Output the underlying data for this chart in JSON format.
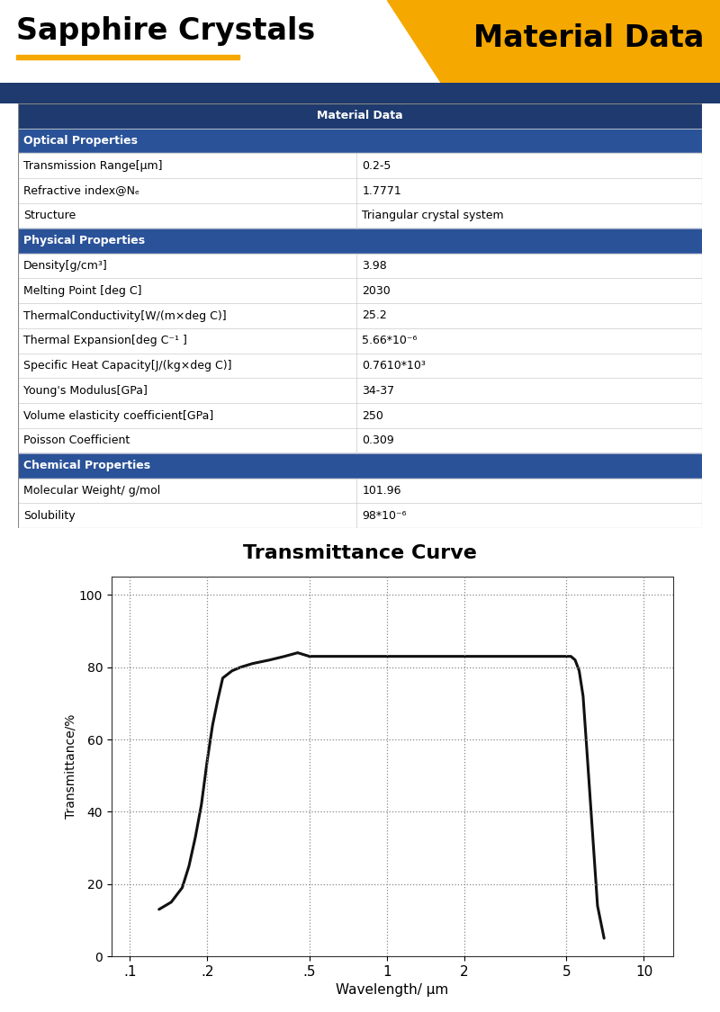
{
  "title_left": "Sapphire Crystals",
  "title_right": "Material Data",
  "header_bg": "#1e3a6e",
  "section_bg": "#2a5298",
  "gold_color": "#f5a800",
  "table_header": "Material Data",
  "sections": [
    {
      "name": "Optical Properties",
      "rows": [
        {
          "property": "Transmission Range[μm]",
          "value": "0.2-5"
        },
        {
          "property": "Refractive index@Nₑ",
          "value": "1.7771"
        },
        {
          "property": "Structure",
          "value": "Triangular crystal system"
        }
      ]
    },
    {
      "name": "Physical Properties",
      "rows": [
        {
          "property": "Density[g/cm³]",
          "value": "3.98"
        },
        {
          "property": "Melting Point [deg C]",
          "value": "2030"
        },
        {
          "property": "ThermalConductivity[W/(m×deg C)]",
          "value": "25.2"
        },
        {
          "property": "Thermal Expansion[deg C⁻¹ ]",
          "value": "5.66*10⁻⁶"
        },
        {
          "property": "Specific Heat Capacity[J/(kg×deg C)]",
          "value": "0.7610*10³"
        },
        {
          "property": "Young's Modulus[GPa]",
          "value": "34-37"
        },
        {
          "property": "Volume elasticity coefficient[GPa]",
          "value": "250"
        },
        {
          "property": "Poisson Coefficient",
          "value": "0.309"
        }
      ]
    },
    {
      "name": "Chemical Properties",
      "rows": [
        {
          "property": "Molecular Weight/ g/mol",
          "value": "101.96"
        },
        {
          "property": "Solubility",
          "value": "98*10⁻⁶"
        }
      ]
    }
  ],
  "chart_title": "Transmittance Curve",
  "xlabel": "Wavelength/ μm",
  "ylabel": "Transmittance/%",
  "curve_color": "#111111",
  "curve_x": [
    0.13,
    0.145,
    0.16,
    0.17,
    0.18,
    0.19,
    0.2,
    0.21,
    0.22,
    0.23,
    0.25,
    0.27,
    0.3,
    0.35,
    0.4,
    0.45,
    0.5,
    0.55,
    0.6,
    0.7,
    0.8,
    1.0,
    1.5,
    2.0,
    2.5,
    3.0,
    3.5,
    4.0,
    4.5,
    5.0,
    5.2,
    5.4,
    5.6,
    5.8,
    6.0,
    6.3,
    6.6,
    7.0
  ],
  "curve_y": [
    13,
    15,
    19,
    25,
    33,
    42,
    54,
    64,
    71,
    77,
    79,
    80,
    81,
    82,
    83,
    84,
    83,
    83,
    83,
    83,
    83,
    83,
    83,
    83,
    83,
    83,
    83,
    83,
    83,
    83,
    83,
    82,
    79,
    72,
    57,
    35,
    14,
    5
  ],
  "xticks": [
    0.1,
    0.2,
    0.5,
    1,
    2,
    5,
    10
  ],
  "xtick_labels": [
    ".1",
    ".2",
    ".5",
    "1",
    "2",
    "5",
    "10"
  ],
  "yticks": [
    0,
    20,
    40,
    60,
    80,
    100
  ],
  "xlim_log": [
    0.085,
    13
  ],
  "ylim": [
    0,
    105
  ]
}
